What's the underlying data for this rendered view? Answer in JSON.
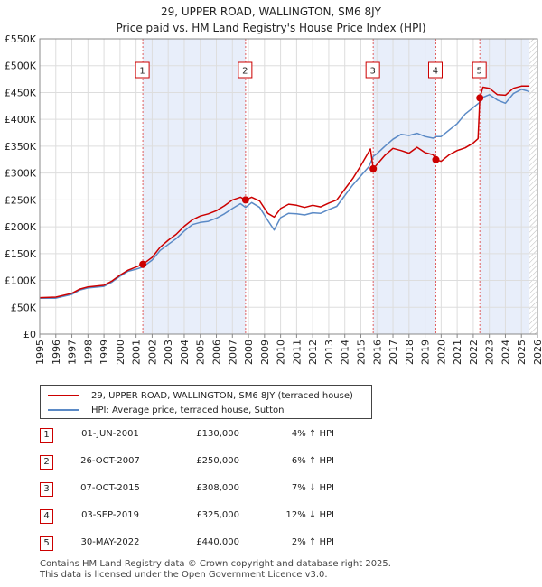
{
  "chart_data": {
    "type": "line",
    "title": "29, UPPER ROAD, WALLINGTON, SM6 8JY",
    "subtitle": "Price paid vs. HM Land Registry's House Price Index (HPI)",
    "xlim": [
      1995,
      2026
    ],
    "ylim": [
      0,
      550000
    ],
    "y_ticks": [
      0,
      50000,
      100000,
      150000,
      200000,
      250000,
      300000,
      350000,
      400000,
      450000,
      500000,
      550000
    ],
    "y_tick_labels": [
      "£0",
      "£50K",
      "£100K",
      "£150K",
      "£200K",
      "£250K",
      "£300K",
      "£350K",
      "£400K",
      "£450K",
      "£500K",
      "£550K"
    ],
    "x_tick_labels": [
      "1995",
      "1996",
      "1997",
      "1998",
      "1999",
      "2000",
      "2001",
      "2002",
      "2003",
      "2004",
      "2005",
      "2006",
      "2007",
      "2008",
      "2009",
      "2010",
      "2011",
      "2012",
      "2013",
      "2014",
      "2015",
      "2016",
      "2017",
      "2018",
      "2019",
      "2020",
      "2021",
      "2022",
      "2023",
      "2024",
      "2025",
      "2026"
    ],
    "grid": true,
    "series": [
      {
        "name": "29, UPPER ROAD, WALLINGTON, SM6 8JY (terraced house)",
        "color": "#cc0000",
        "x": [
          1995.0,
          1996.0,
          1997.0,
          1997.5,
          1998.0,
          1999.0,
          1999.5,
          2000.0,
          2000.5,
          2001.0,
          2001.42,
          2002.0,
          2002.5,
          2003.0,
          2003.5,
          2004.0,
          2004.5,
          2005.0,
          2005.5,
          2006.0,
          2006.5,
          2007.0,
          2007.5,
          2007.82,
          2008.2,
          2008.7,
          2009.2,
          2009.6,
          2010.0,
          2010.5,
          2011.0,
          2011.5,
          2012.0,
          2012.5,
          2013.0,
          2013.5,
          2014.0,
          2014.5,
          2015.0,
          2015.5,
          2015.6,
          2015.77,
          2016.0,
          2016.5,
          2017.0,
          2017.5,
          2018.0,
          2018.5,
          2019.0,
          2019.5,
          2019.67,
          2020.0,
          2020.5,
          2021.0,
          2021.5,
          2022.0,
          2022.3,
          2022.41,
          2022.6,
          2023.0,
          2023.5,
          2024.0,
          2024.5,
          2025.0,
          2025.5
        ],
        "values": [
          68000,
          69000,
          76000,
          84000,
          88000,
          91000,
          99000,
          110000,
          119000,
          125000,
          130000,
          143000,
          162000,
          175000,
          186000,
          201000,
          213000,
          220000,
          224000,
          230000,
          239000,
          250000,
          255000,
          250000,
          255000,
          248000,
          225000,
          218000,
          234000,
          242000,
          240000,
          236000,
          240000,
          237000,
          244000,
          250000,
          270000,
          290000,
          314000,
          340000,
          345000,
          308000,
          316000,
          333000,
          346000,
          342000,
          337000,
          348000,
          338000,
          334000,
          325000,
          322000,
          334000,
          342000,
          347000,
          356000,
          364000,
          440000,
          460000,
          458000,
          446000,
          445000,
          458000,
          462000,
          462000
        ]
      },
      {
        "name": "HPI: Average price, terraced house, Sutton",
        "color": "#5b8ac6",
        "x": [
          1995.0,
          1996.0,
          1997.0,
          1997.5,
          1998.0,
          1999.0,
          1999.5,
          2000.0,
          2000.5,
          2001.0,
          2001.42,
          2002.0,
          2002.5,
          2003.0,
          2003.5,
          2004.0,
          2004.5,
          2005.0,
          2005.5,
          2006.0,
          2006.5,
          2007.0,
          2007.5,
          2007.82,
          2008.2,
          2008.7,
          2009.2,
          2009.6,
          2010.0,
          2010.5,
          2011.0,
          2011.5,
          2012.0,
          2012.5,
          2013.0,
          2013.5,
          2014.0,
          2014.5,
          2015.0,
          2015.5,
          2015.77,
          2016.0,
          2016.5,
          2017.0,
          2017.5,
          2018.0,
          2018.5,
          2019.0,
          2019.5,
          2019.67,
          2020.0,
          2020.5,
          2021.0,
          2021.5,
          2022.0,
          2022.41,
          2022.6,
          2023.0,
          2023.5,
          2024.0,
          2024.5,
          2025.0,
          2025.5
        ],
        "values": [
          67000,
          67000,
          74000,
          82000,
          86000,
          89000,
          97000,
          108000,
          117000,
          121000,
          125000,
          138000,
          156000,
          167000,
          178000,
          192000,
          204000,
          208000,
          210000,
          216000,
          224000,
          234000,
          243000,
          236000,
          245000,
          236000,
          212000,
          194000,
          217000,
          225000,
          224000,
          222000,
          226000,
          225000,
          232000,
          238000,
          258000,
          278000,
          295000,
          312000,
          331000,
          336000,
          350000,
          363000,
          372000,
          370000,
          374000,
          368000,
          365000,
          368000,
          368000,
          380000,
          392000,
          410000,
          422000,
          432000,
          441000,
          446000,
          436000,
          430000,
          448000,
          456000,
          452000
        ]
      }
    ],
    "markers": [
      {
        "label": "1",
        "x": 2001.42,
        "y": 130000,
        "date": "01-JUN-2001",
        "price": "£130,000",
        "hpi": "4% ↑ HPI"
      },
      {
        "label": "2",
        "x": 2007.82,
        "y": 250000,
        "date": "26-OCT-2007",
        "price": "£250,000",
        "hpi": "6% ↑ HPI"
      },
      {
        "label": "3",
        "x": 2015.77,
        "y": 308000,
        "date": "07-OCT-2015",
        "price": "£308,000",
        "hpi": "7% ↓ HPI"
      },
      {
        "label": "4",
        "x": 2019.67,
        "y": 325000,
        "date": "03-SEP-2019",
        "price": "£325,000",
        "hpi": "12% ↓ HPI"
      },
      {
        "label": "5",
        "x": 2022.41,
        "y": 440000,
        "date": "30-MAY-2022",
        "price": "£440,000",
        "hpi": "2% ↑ HPI"
      }
    ],
    "shaded_spans": [
      [
        2001.42,
        2007.82
      ],
      [
        2015.77,
        2019.67
      ],
      [
        2022.41,
        2025.5
      ]
    ],
    "hatched_span": [
      2025.5,
      2026.0
    ]
  },
  "footer": {
    "line1": "Contains HM Land Registry data © Crown copyright and database right 2025.",
    "line2": "This data is licensed under the Open Government Licence v3.0."
  }
}
